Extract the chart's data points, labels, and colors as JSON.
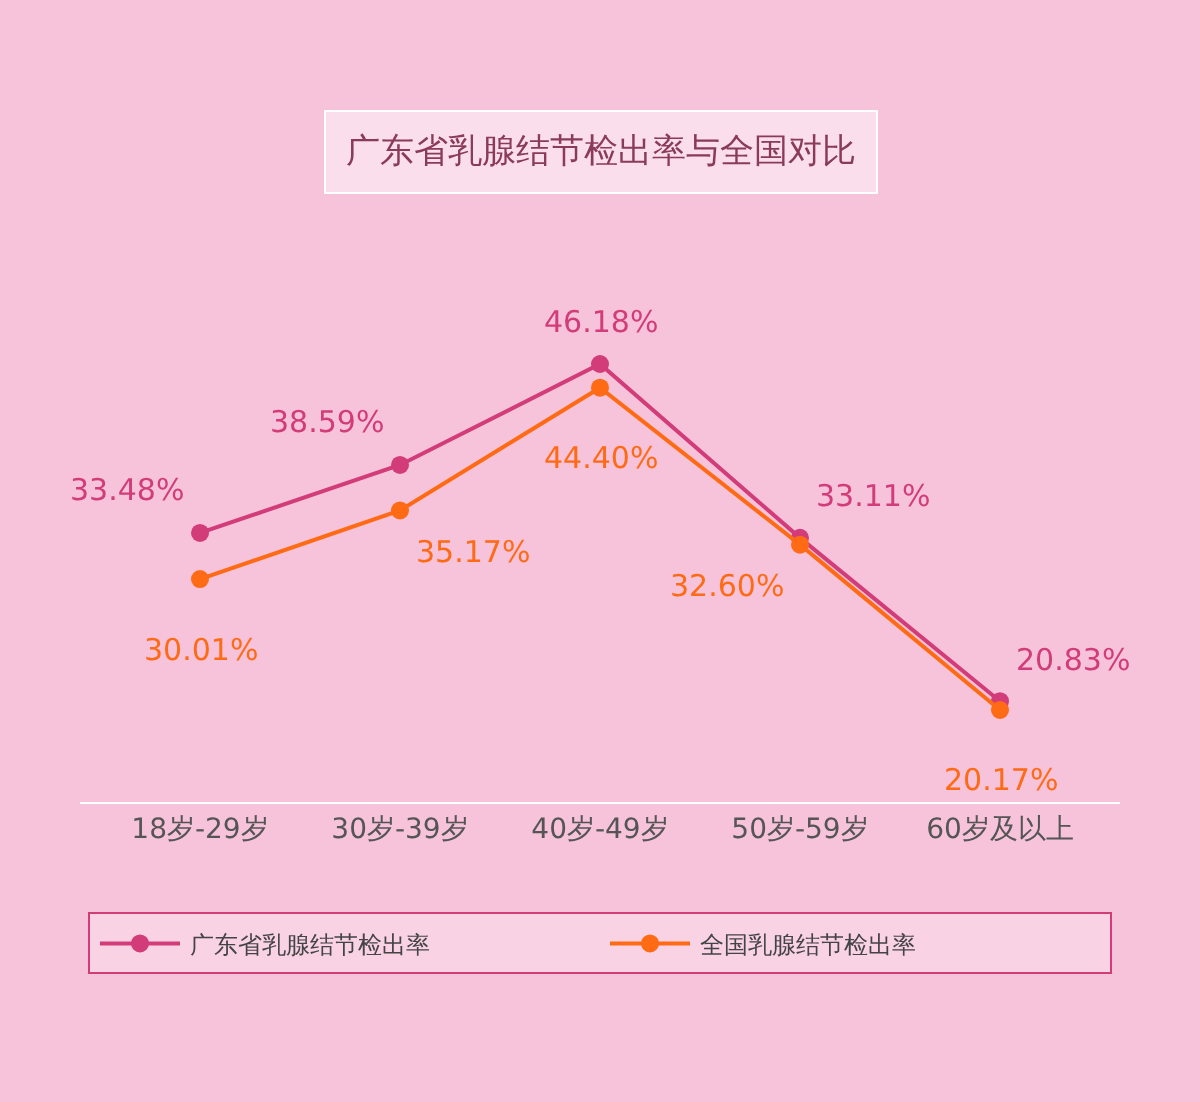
{
  "chart_data": {
    "type": "line",
    "title": "广东省乳腺结节检出率与全国对比",
    "categories": [
      "18岁-29岁",
      "30岁-39岁",
      "40岁-49岁",
      "50岁-59岁",
      "60岁及以上"
    ],
    "series": [
      {
        "name": "广东省乳腺结节检出率",
        "color": "#d23c78",
        "values": [
          33.48,
          38.59,
          46.18,
          33.11,
          20.83
        ],
        "value_labels": [
          "33.48%",
          "38.59%",
          "46.18%",
          "33.11%",
          "20.83%"
        ]
      },
      {
        "name": "全国乳腺结节检出率",
        "color": "#ff6a14",
        "values": [
          30.01,
          35.17,
          44.4,
          32.6,
          20.17
        ],
        "value_labels": [
          "30.01%",
          "35.17%",
          "44.40%",
          "32.60%",
          "20.17%"
        ]
      }
    ],
    "marker": "circle",
    "line_style": "solid",
    "grid": false,
    "legend": "bottom"
  }
}
